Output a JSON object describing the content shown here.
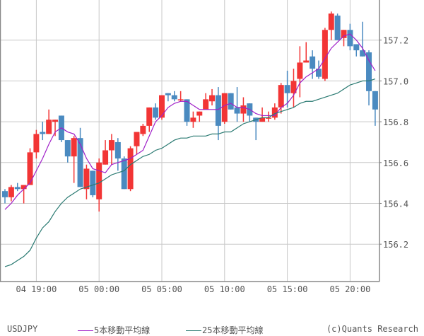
{
  "chart_data": {
    "type": "candlestick",
    "symbol": "USDJPY",
    "ylim": [
      156.0,
      157.4
    ],
    "y_ticks": [
      "157.2",
      "157.0",
      "156.8",
      "156.6",
      "156.4",
      "156.2"
    ],
    "y_tick_values": [
      157.2,
      157.0,
      156.8,
      156.6,
      156.4,
      156.2
    ],
    "x_ticks": [
      {
        "label": "04 19:00",
        "index": 5
      },
      {
        "label": "05 00:00",
        "index": 15
      },
      {
        "label": "05 05:00",
        "index": 25
      },
      {
        "label": "05 10:00",
        "index": 35
      },
      {
        "label": "05 15:00",
        "index": 45
      },
      {
        "label": "05 20:00",
        "index": 55
      }
    ],
    "grid": true,
    "open": [
      156.46,
      156.43,
      156.48,
      156.47,
      156.49,
      156.65,
      156.75,
      156.74,
      156.8,
      156.83,
      156.71,
      156.63,
      156.72,
      156.47,
      156.56,
      156.42,
      156.59,
      156.66,
      156.7,
      156.62,
      156.47,
      156.68,
      156.74,
      156.78,
      156.87,
      156.82,
      156.94,
      156.93,
      156.91,
      156.91,
      156.8,
      156.83,
      156.86,
      156.9,
      156.93,
      156.8,
      156.94,
      156.87,
      156.84,
      156.89,
      156.82,
      156.8,
      156.82,
      156.82,
      156.87,
      156.98,
      156.94,
      157.01,
      157.09,
      157.12,
      157.06,
      157.01,
      157.25,
      157.32,
      157.21,
      157.25,
      157.18,
      157.15,
      157.14,
      156.95
    ],
    "high": [
      156.47,
      156.49,
      156.5,
      156.49,
      156.67,
      156.76,
      156.8,
      156.86,
      156.81,
      156.83,
      156.71,
      156.73,
      156.77,
      156.59,
      156.56,
      156.62,
      156.71,
      156.74,
      156.72,
      156.63,
      156.68,
      156.75,
      156.79,
      156.87,
      156.89,
      156.93,
      156.94,
      156.95,
      156.95,
      156.91,
      156.85,
      156.85,
      156.94,
      156.96,
      156.97,
      156.94,
      156.94,
      156.97,
      156.92,
      156.89,
      156.82,
      156.87,
      156.85,
      156.89,
      156.99,
      157.05,
      157.06,
      157.17,
      157.19,
      157.15,
      157.1,
      157.26,
      157.34,
      157.33,
      157.25,
      157.28,
      157.18,
      157.29,
      157.15,
      156.95
    ],
    "low": [
      156.4,
      156.41,
      156.46,
      156.4,
      156.49,
      156.62,
      156.71,
      156.74,
      156.73,
      156.7,
      156.6,
      156.5,
      156.48,
      156.42,
      156.43,
      156.36,
      156.59,
      156.59,
      156.56,
      156.47,
      156.46,
      156.64,
      156.73,
      156.75,
      156.81,
      156.81,
      156.9,
      156.9,
      156.9,
      156.78,
      156.77,
      156.8,
      156.86,
      156.88,
      156.71,
      156.79,
      156.86,
      156.8,
      156.8,
      156.8,
      156.71,
      156.8,
      156.8,
      156.81,
      156.84,
      156.87,
      156.87,
      156.92,
      157.09,
      157.01,
      157.01,
      157.0,
      157.2,
      157.2,
      157.17,
      157.15,
      157.12,
      157.12,
      156.88,
      156.78
    ],
    "close": [
      156.43,
      156.48,
      156.47,
      156.49,
      156.65,
      156.74,
      156.74,
      156.81,
      156.81,
      156.71,
      156.63,
      156.72,
      156.48,
      156.57,
      156.44,
      156.6,
      156.66,
      156.71,
      156.62,
      156.47,
      156.67,
      156.75,
      156.78,
      156.87,
      156.82,
      156.93,
      156.93,
      156.91,
      156.91,
      156.8,
      156.82,
      156.85,
      156.91,
      156.93,
      156.78,
      156.94,
      156.86,
      156.84,
      156.88,
      156.83,
      156.8,
      156.82,
      156.82,
      156.87,
      156.98,
      156.94,
      157.0,
      157.09,
      157.1,
      157.06,
      157.02,
      157.25,
      157.33,
      157.2,
      157.25,
      157.17,
      157.15,
      157.12,
      156.95,
      156.86
    ],
    "series": [
      {
        "name": "5本移動平均線",
        "color": "#a020c8",
        "values": [
          156.37,
          156.4,
          156.44,
          156.47,
          156.5,
          156.56,
          156.62,
          156.69,
          156.75,
          156.77,
          156.75,
          156.74,
          156.69,
          156.62,
          156.57,
          156.56,
          156.55,
          156.59,
          156.6,
          156.61,
          156.62,
          156.64,
          156.66,
          156.73,
          156.8,
          156.83,
          156.87,
          156.89,
          156.9,
          156.9,
          156.88,
          156.86,
          156.86,
          156.86,
          156.86,
          156.88,
          156.89,
          156.87,
          156.87,
          156.86,
          156.84,
          156.83,
          156.83,
          156.83,
          156.87,
          156.89,
          156.93,
          156.99,
          157.02,
          157.04,
          157.06,
          157.11,
          157.16,
          157.19,
          157.22,
          157.23,
          157.2,
          157.16,
          157.1,
          157.05
        ]
      },
      {
        "name": "25本移動平均線",
        "color": "#2a7a72",
        "values": [
          156.09,
          156.1,
          156.12,
          156.14,
          156.17,
          156.23,
          156.28,
          156.31,
          156.36,
          156.4,
          156.43,
          156.45,
          156.47,
          156.48,
          156.49,
          156.5,
          156.52,
          156.54,
          156.55,
          156.56,
          156.59,
          156.61,
          156.63,
          156.64,
          156.66,
          156.67,
          156.69,
          156.71,
          156.72,
          156.72,
          156.73,
          156.73,
          156.73,
          156.74,
          156.74,
          156.75,
          156.75,
          156.77,
          156.79,
          156.8,
          156.81,
          156.82,
          156.82,
          156.84,
          156.85,
          156.86,
          156.87,
          156.89,
          156.9,
          156.9,
          156.91,
          156.92,
          156.93,
          156.94,
          156.96,
          156.98,
          156.99,
          157.0,
          157.0,
          157.01
        ]
      }
    ],
    "colors": {
      "up": "#f23535",
      "down": "#4a8ac0",
      "grid": "#c8c8c8"
    }
  },
  "legend": {
    "symbol": "USDJPY",
    "ma5": "5本移動平均線",
    "ma25": "25本移動平均線",
    "credit": "(c)Quants Research"
  }
}
